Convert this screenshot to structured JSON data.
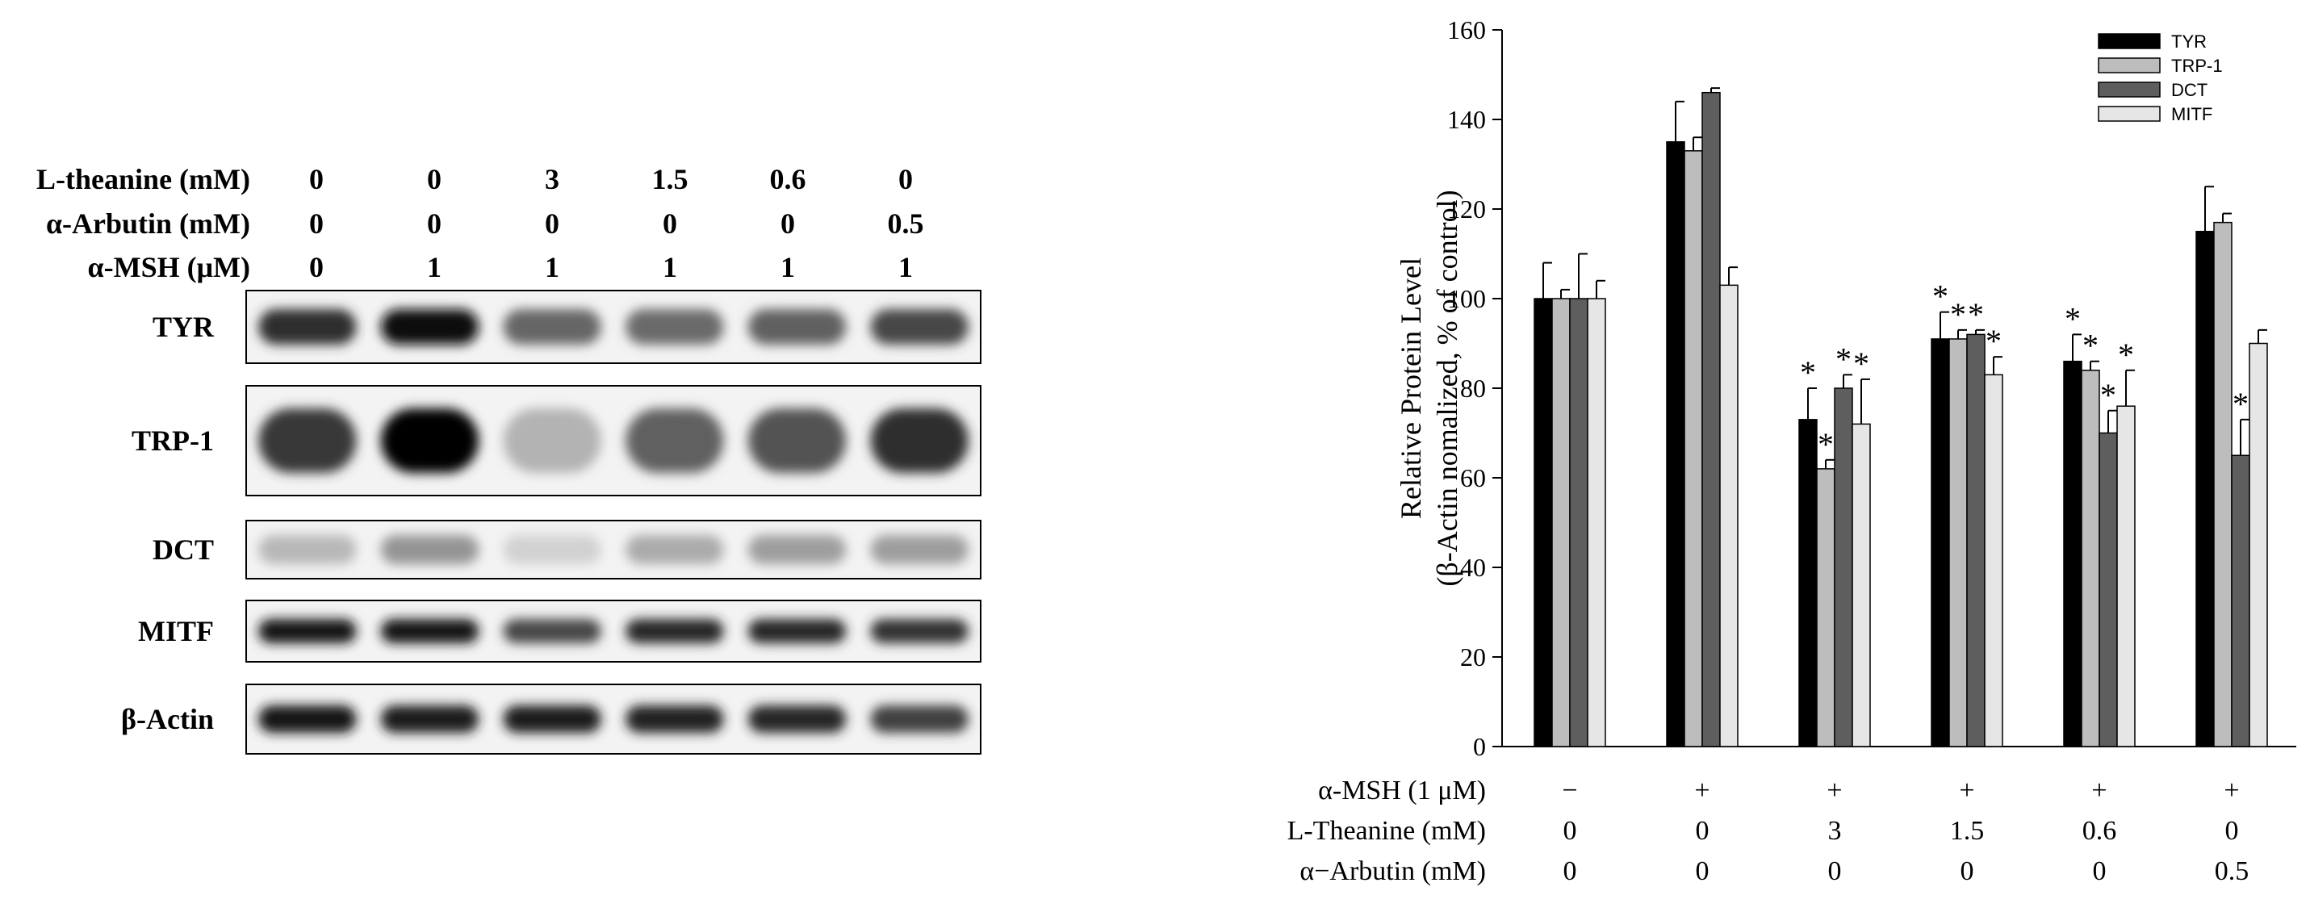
{
  "blot": {
    "treatments": [
      {
        "label": "L-theanine (mM)",
        "values": [
          "0",
          "0",
          "3",
          "1.5",
          "0.6",
          "0"
        ]
      },
      {
        "label": "α-Arbutin (mM)",
        "values": [
          "0",
          "0",
          "0",
          "0",
          "0",
          "0.5"
        ]
      },
      {
        "label": "α-MSH (μM)",
        "values": [
          "0",
          "1",
          "1",
          "1",
          "1",
          "1"
        ]
      }
    ],
    "proteins": [
      {
        "name": "TYR",
        "intensity": [
          0.82,
          0.95,
          0.6,
          0.58,
          0.62,
          0.72
        ]
      },
      {
        "name": "TRP-1",
        "intensity": [
          0.78,
          1.0,
          0.3,
          0.62,
          0.68,
          0.82
        ]
      },
      {
        "name": "DCT",
        "intensity": [
          0.28,
          0.42,
          0.18,
          0.33,
          0.38,
          0.38
        ]
      },
      {
        "name": "MITF",
        "intensity": [
          0.92,
          0.9,
          0.72,
          0.85,
          0.85,
          0.8
        ]
      },
      {
        "name": "β-Actin",
        "intensity": [
          0.9,
          0.88,
          0.88,
          0.86,
          0.85,
          0.75
        ]
      }
    ]
  },
  "chart_data": {
    "type": "bar",
    "ylabel_line1": "Relative Protein Level",
    "ylabel_line2": "(β-Actin nomalized, % of control)",
    "ylim": [
      0,
      160
    ],
    "yticks": [
      0,
      20,
      40,
      60,
      80,
      100,
      120,
      140,
      160
    ],
    "legend_position": "top-right",
    "series": [
      {
        "name": "TYR",
        "color": "#000000",
        "values": [
          100,
          135,
          73,
          91,
          86,
          115
        ],
        "errors": [
          8,
          9,
          7,
          6,
          6,
          10
        ],
        "significant": [
          false,
          false,
          true,
          true,
          true,
          false
        ]
      },
      {
        "name": "TRP-1",
        "color": "#bdbdbd",
        "values": [
          100,
          133,
          62,
          91,
          84,
          117
        ],
        "errors": [
          2,
          3,
          2,
          2,
          2,
          2
        ],
        "significant": [
          false,
          false,
          true,
          true,
          true,
          false
        ]
      },
      {
        "name": "DCT",
        "color": "#5e5e5e",
        "values": [
          100,
          146,
          80,
          92,
          70,
          65
        ],
        "errors": [
          10,
          1,
          3,
          1,
          5,
          8
        ],
        "significant": [
          false,
          false,
          true,
          true,
          true,
          true
        ]
      },
      {
        "name": "MITF",
        "color": "#e6e6e6",
        "values": [
          100,
          103,
          72,
          83,
          76,
          90
        ],
        "errors": [
          4,
          4,
          10,
          4,
          8,
          3
        ],
        "significant": [
          false,
          false,
          true,
          true,
          true,
          false
        ]
      }
    ],
    "condition_rows": [
      {
        "label": "α-MSH (1 μM)",
        "values": [
          "−",
          "+",
          "+",
          "+",
          "+",
          "+"
        ]
      },
      {
        "label": "L-Theanine (mM)",
        "values": [
          "0",
          "0",
          "3",
          "1.5",
          "0.6",
          "0"
        ]
      },
      {
        "label": "α−Arbutin (mM)",
        "values": [
          "0",
          "0",
          "0",
          "0",
          "0",
          "0.5"
        ]
      }
    ],
    "significance_marker": "*"
  }
}
